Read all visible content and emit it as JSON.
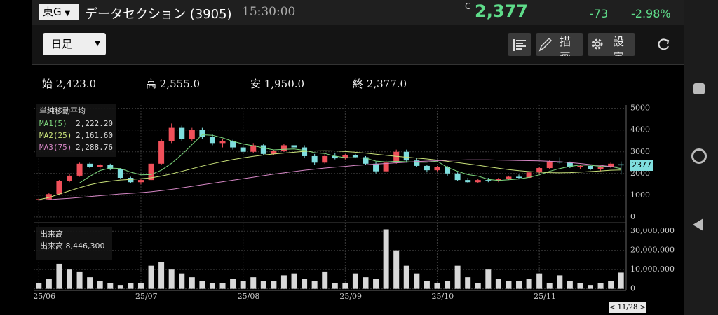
{
  "header": {
    "market": "東G",
    "name": "データセクション (3905)",
    "time": "15:30:00",
    "c": "C",
    "price": "2,377",
    "change": "-73",
    "change_pct": "-2.98%"
  },
  "toolbar": {
    "period": "日足",
    "draw": "描画",
    "settings": "設定"
  },
  "ohlc_row": [
    {
      "label": "始",
      "value": "2,423.0"
    },
    {
      "label": "高",
      "value": "2,555.0"
    },
    {
      "label": "安",
      "value": "1,950.0"
    },
    {
      "label": "終",
      "value": "2,377.0"
    }
  ],
  "chart_data": {
    "type": "candlestick",
    "categories": [
      "25/06",
      null,
      null,
      null,
      null,
      null,
      null,
      null,
      null,
      null,
      "25/07",
      null,
      null,
      null,
      null,
      null,
      null,
      null,
      null,
      null,
      "25/08",
      null,
      null,
      null,
      null,
      null,
      null,
      null,
      null,
      null,
      "25/09",
      null,
      null,
      null,
      null,
      null,
      null,
      null,
      null,
      "25/10",
      null,
      null,
      null,
      null,
      null,
      null,
      null,
      null,
      null,
      "25/11",
      null,
      null,
      null,
      null,
      null,
      null,
      null,
      null
    ],
    "ohlc": [
      [
        800,
        850,
        750,
        820
      ],
      [
        820,
        1100,
        800,
        1050
      ],
      [
        1050,
        1700,
        1000,
        1650
      ],
      [
        1650,
        2000,
        1600,
        1900
      ],
      [
        1900,
        2500,
        1850,
        2450
      ],
      [
        2450,
        2500,
        2250,
        2300
      ],
      [
        2300,
        2450,
        2200,
        2400
      ],
      [
        2400,
        2450,
        2150,
        2200
      ],
      [
        2200,
        2250,
        1750,
        1800
      ],
      [
        1800,
        1850,
        1550,
        1600
      ],
      [
        1600,
        1750,
        1500,
        1700
      ],
      [
        1700,
        2500,
        1650,
        2450
      ],
      [
        2450,
        3600,
        2400,
        3500
      ],
      [
        3500,
        4300,
        3400,
        4100
      ],
      [
        4100,
        4200,
        3500,
        3600
      ],
      [
        3600,
        4100,
        3500,
        4000
      ],
      [
        4000,
        4100,
        3600,
        3700
      ],
      [
        3700,
        3800,
        3300,
        3400
      ],
      [
        3400,
        3600,
        3200,
        3500
      ],
      [
        3500,
        3550,
        3100,
        3200
      ],
      [
        3200,
        3300,
        2900,
        3000
      ],
      [
        3000,
        3400,
        2950,
        3300
      ],
      [
        3300,
        3350,
        2850,
        2900
      ],
      [
        2900,
        3100,
        2850,
        3050
      ],
      [
        3050,
        3350,
        3000,
        3300
      ],
      [
        3300,
        3500,
        3150,
        3200
      ],
      [
        3200,
        3300,
        2700,
        2800
      ],
      [
        2800,
        2900,
        2400,
        2500
      ],
      [
        2500,
        2900,
        2450,
        2800
      ],
      [
        2800,
        2950,
        2650,
        2700
      ],
      [
        2700,
        2900,
        2650,
        2850
      ],
      [
        2850,
        2900,
        2700,
        2750
      ],
      [
        2750,
        2800,
        2400,
        2450
      ],
      [
        2450,
        2550,
        2000,
        2100
      ],
      [
        2100,
        2600,
        2050,
        2500
      ],
      [
        2500,
        3100,
        2450,
        3000
      ],
      [
        3000,
        3100,
        2500,
        2600
      ],
      [
        2600,
        2700,
        2300,
        2350
      ],
      [
        2350,
        2400,
        2050,
        2150
      ],
      [
        2150,
        2350,
        2100,
        2300
      ],
      [
        2300,
        2350,
        1900,
        2000
      ],
      [
        2000,
        2050,
        1650,
        1700
      ],
      [
        1700,
        1800,
        1550,
        1600
      ],
      [
        1600,
        1750,
        1550,
        1700
      ],
      [
        1700,
        1800,
        1600,
        1650
      ],
      [
        1650,
        1800,
        1600,
        1750
      ],
      [
        1750,
        1900,
        1700,
        1850
      ],
      [
        1850,
        1950,
        1750,
        1800
      ],
      [
        1800,
        2100,
        1750,
        2050
      ],
      [
        2050,
        2300,
        2000,
        2250
      ],
      [
        2250,
        2600,
        2200,
        2550
      ],
      [
        2550,
        2750,
        2450,
        2500
      ],
      [
        2500,
        2550,
        2250,
        2300
      ],
      [
        2300,
        2400,
        2200,
        2350
      ],
      [
        2350,
        2400,
        2150,
        2200
      ],
      [
        2200,
        2350,
        2100,
        2300
      ],
      [
        2300,
        2500,
        2250,
        2450
      ],
      [
        2423,
        2555,
        1950,
        2377
      ]
    ],
    "up_color": "#f0505a",
    "down_color": "#7fdede",
    "ma_title": "単純移動平均",
    "series": [
      {
        "name": "MA1(5)",
        "color": "#7ed87e",
        "last_label": "2,222.20",
        "values": [
          null,
          null,
          null,
          null,
          1570,
          1870,
          2140,
          2250,
          2230,
          2060,
          1940,
          1950,
          2150,
          2470,
          2870,
          3330,
          3780,
          3760,
          3640,
          3480,
          3360,
          3280,
          3180,
          3090,
          3110,
          3130,
          3070,
          2960,
          2920,
          2800,
          2730,
          2720,
          2710,
          2570,
          2530,
          2560,
          2540,
          2520,
          2520,
          2570,
          2280,
          2100,
          1950,
          1880,
          1730,
          1680,
          1710,
          1750,
          1820,
          1940,
          2100,
          2230,
          2330,
          2390,
          2380,
          2330,
          2320,
          2222.2
        ]
      },
      {
        "name": "MA2(25)",
        "color": "#c9e27a",
        "last_label": "2,161.60",
        "values": [
          800,
          900,
          1050,
          1200,
          1350,
          1480,
          1580,
          1650,
          1700,
          1730,
          1760,
          1800,
          1880,
          1980,
          2100,
          2220,
          2340,
          2450,
          2550,
          2640,
          2720,
          2790,
          2850,
          2900,
          2940,
          2980,
          3020,
          3040,
          3050,
          3040,
          3010,
          2980,
          2940,
          2890,
          2840,
          2790,
          2750,
          2710,
          2670,
          2620,
          2560,
          2500,
          2440,
          2380,
          2310,
          2240,
          2180,
          2130,
          2090,
          2060,
          2040,
          2030,
          2040,
          2060,
          2090,
          2120,
          2150,
          2161.6
        ]
      },
      {
        "name": "MA3(75)",
        "color": "#d486c4",
        "last_label": "2,288.76",
        "values": [
          780,
          800,
          830,
          860,
          900,
          940,
          980,
          1020,
          1060,
          1090,
          1120,
          1160,
          1210,
          1270,
          1340,
          1410,
          1480,
          1550,
          1620,
          1690,
          1760,
          1830,
          1900,
          1970,
          2030,
          2090,
          2150,
          2200,
          2250,
          2290,
          2330,
          2370,
          2400,
          2430,
          2460,
          2490,
          2520,
          2550,
          2570,
          2590,
          2610,
          2620,
          2630,
          2630,
          2630,
          2620,
          2610,
          2600,
          2590,
          2580,
          2560,
          2540,
          2500,
          2460,
          2410,
          2370,
          2320,
          2288.76
        ]
      }
    ],
    "ylim": [
      -100,
      5150
    ],
    "yticks": [
      0,
      1000,
      2000,
      3000,
      4000,
      5000
    ],
    "price_tag": "2377",
    "volume_title": "出来高",
    "volume_name": "出来高",
    "volume_label": "8,446,300",
    "volume_color": "#d8d8d8",
    "volume": [
      3000000,
      5000000,
      13000000,
      10000000,
      9000000,
      6000000,
      4000000,
      3000000,
      2000000,
      3000000,
      3000000,
      12000000,
      14000000,
      10000000,
      8000000,
      6000000,
      4000000,
      3000000,
      3000000,
      5000000,
      4000000,
      6000000,
      4000000,
      4000000,
      7000000,
      8000000,
      5000000,
      4000000,
      9000000,
      3000000,
      3000000,
      8000000,
      6000000,
      5000000,
      31000000,
      20000000,
      12000000,
      8000000,
      4000000,
      3000000,
      4000000,
      12000000,
      6000000,
      3000000,
      10000000,
      5000000,
      4000000,
      4000000,
      5000000,
      8000000,
      3000000,
      7000000,
      4000000,
      3000000,
      2000000,
      3000000,
      4000000,
      8446300
    ],
    "vlim": [
      -500000,
      33000000
    ],
    "vticks": [
      0,
      {
        "value": 10000000,
        "label": "10,000,000"
      },
      {
        "value": 20000000,
        "label": "20,000,000"
      },
      {
        "value": 30000000,
        "label": "30,000,000"
      }
    ],
    "grid": true,
    "cursor_date": "< 11/28 >"
  }
}
